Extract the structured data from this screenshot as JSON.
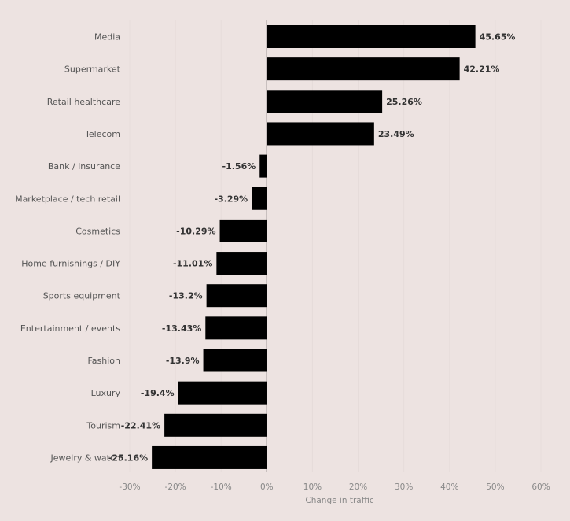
{
  "chart_data": {
    "type": "bar",
    "orientation": "horizontal",
    "categories": [
      "Media",
      "Supermarket",
      "Retail healthcare",
      "Telecom",
      "Bank / insurance",
      "Marketplace / tech retail",
      "Cosmetics",
      "Home furnishings / DIY",
      "Sports equipment",
      "Entertainment / events",
      "Fashion",
      "Luxury",
      "Tourism",
      "Jewelry & watch"
    ],
    "values": [
      45.65,
      42.21,
      25.26,
      23.49,
      -1.56,
      -3.29,
      -10.29,
      -11.01,
      -13.2,
      -13.43,
      -13.9,
      -19.4,
      -22.41,
      -25.16
    ],
    "value_labels": [
      "45.65%",
      "42.21%",
      "25.26%",
      "23.49%",
      "-1.56%",
      "-3.29%",
      "-10.29%",
      "-11.01%",
      "-13.2%",
      "-13.43%",
      "-13.9%",
      "-19.4%",
      "-22.41%",
      "-25.16%"
    ],
    "xlabel": "Change in traffic",
    "ylabel": "",
    "xlim": [
      -30,
      60
    ],
    "ticks": [
      -30,
      -20,
      -10,
      0,
      10,
      20,
      30,
      40,
      50,
      60
    ],
    "tick_labels": [
      "-30%",
      "-20%",
      "-10%",
      "0%",
      "10%",
      "20%",
      "30%",
      "40%",
      "50%",
      "60%"
    ],
    "grid": true,
    "legend": "none",
    "bar_color": "#000000",
    "background_color": "#ede3e1"
  }
}
